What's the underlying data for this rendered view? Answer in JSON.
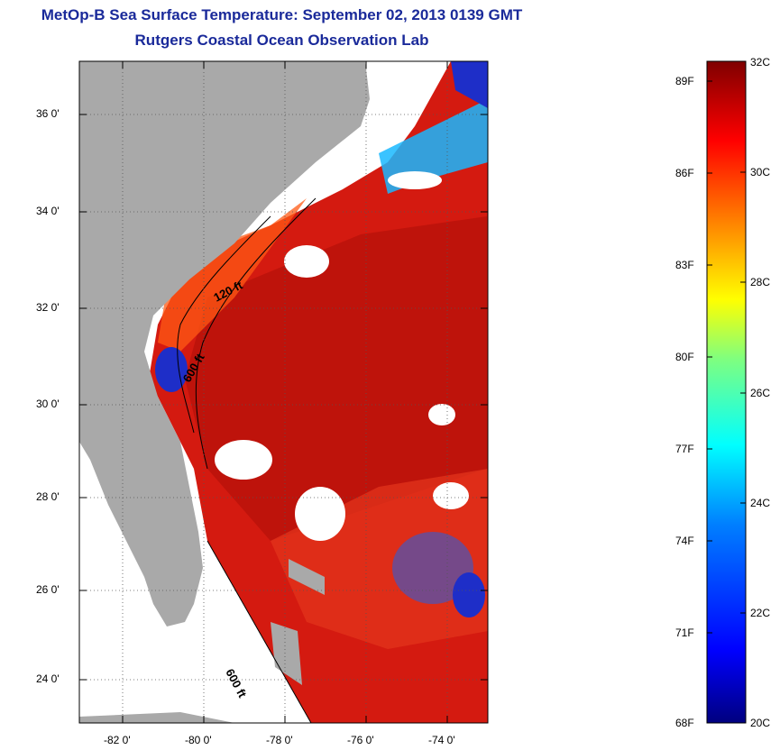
{
  "header": {
    "title": "MetOp-B Sea Surface Temperature:  September 02, 2013 0139 GMT",
    "subtitle": "Rutgers Coastal Ocean Observation Lab"
  },
  "map": {
    "latitude_labels": [
      "36 0'",
      "34 0'",
      "32 0'",
      "30 0'",
      "28 0'",
      "26 0'",
      "24 0'"
    ],
    "longitude_labels": [
      "-82 0'",
      "-80 0'",
      "-78 0'",
      "-76 0'",
      "-74 0'"
    ],
    "contour_labels": [
      "120 ft",
      "600 ft",
      "600 ft"
    ],
    "lat_range": [
      23,
      37.1
    ],
    "lon_range": [
      -83,
      -72.7
    ]
  },
  "colorbar": {
    "fahrenheit_labels": [
      "89F",
      "86F",
      "83F",
      "80F",
      "77F",
      "74F",
      "71F",
      "68F"
    ],
    "celsius_labels": [
      "32C",
      "30C",
      "28C",
      "26C",
      "24C",
      "22C",
      "20C"
    ],
    "range_c": [
      20,
      32
    ],
    "colors": [
      "#00007f",
      "#0000ff",
      "#007fff",
      "#00ffff",
      "#7fff7f",
      "#ffff00",
      "#ff7f00",
      "#ff0000",
      "#7f0000"
    ]
  },
  "colors": {
    "title": "#1a2a9a",
    "land": "#a9a9a9",
    "cloud": "#ffffff",
    "ocean_warm": "#d41a10"
  }
}
